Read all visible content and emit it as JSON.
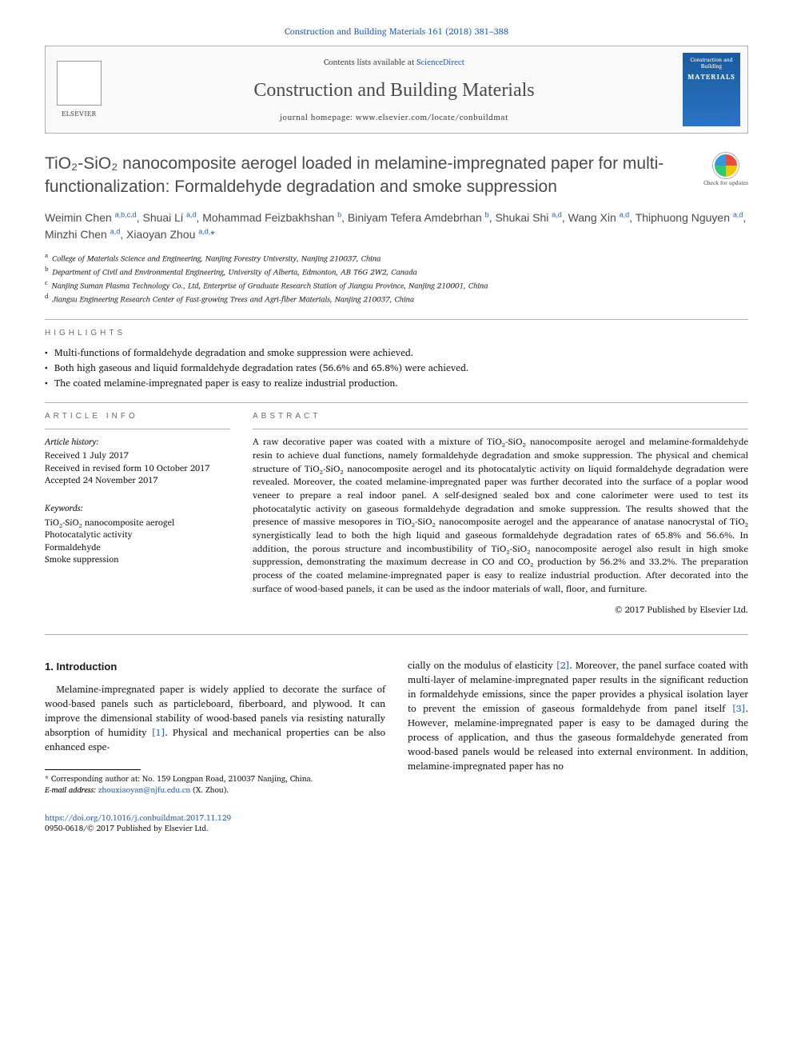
{
  "journal_ref": "Construction and Building Materials 161 (2018) 381–388",
  "header": {
    "contents_pre": "Contents lists available at ",
    "contents_link": "ScienceDirect",
    "journal_name": "Construction and Building Materials",
    "homepage_pre": "journal homepage: ",
    "homepage_url": "www.elsevier.com/locate/conbuildmat",
    "elsevier_label": "ELSEVIER",
    "cover_line1": "Construction and Building",
    "cover_line2": "MATERIALS"
  },
  "title": "TiO₂-SiO₂ nanocomposite aerogel loaded in melamine-impregnated paper for multi-functionalization: Formaldehyde degradation and smoke suppression",
  "check_updates": "Check for updates",
  "authors_html": "Weimin Chen <sup>a,b,c,d</sup>, Shuai Li <sup>a,d</sup>, Mohammad Feizbakhshan <sup>b</sup>, Biniyam Tefera Amdebrhan <sup>b</sup>, Shukai Shi <sup>a,d</sup>, Wang Xin <sup>a,d</sup>, Thiphuong Nguyen <sup>a,d</sup>, Minzhi Chen <sup>a,d</sup>, Xiaoyan Zhou <sup>a,d,</sup><span class='star'>*</span>",
  "affiliations": [
    {
      "sup": "a",
      "text": "College of Materials Science and Engineering, Nanjing Forestry University, Nanjing 210037, China"
    },
    {
      "sup": "b",
      "text": "Department of Civil and Environmental Engineering, University of Alberta, Edmonton, AB T6G 2W2, Canada"
    },
    {
      "sup": "c",
      "text": "Nanjing Suman Plasma Technology Co., Ltd, Enterprise of Graduate Research Station of Jiangsu Province, Nanjing 210001, China"
    },
    {
      "sup": "d",
      "text": "Jiangsu Engineering Research Center of Fast-growing Trees and Agri-fiber Materials, Nanjing 210037, China"
    }
  ],
  "highlights_label": "HIGHLIGHTS",
  "highlights": [
    "Multi-functions of formaldehyde degradation and smoke suppression were achieved.",
    "Both high gaseous and liquid formaldehyde degradation rates (56.6% and 65.8%) were achieved.",
    "The coated melamine-impregnated paper is easy to realize industrial production."
  ],
  "article_info_label": "ARTICLE INFO",
  "abstract_label": "ABSTRACT",
  "history_label": "Article history:",
  "history": [
    "Received 1 July 2017",
    "Received in revised form 10 October 2017",
    "Accepted 24 November 2017"
  ],
  "keywords_label": "Keywords:",
  "keywords": [
    "TiO₂-SiO₂ nanocomposite aerogel",
    "Photocatalytic activity",
    "Formaldehyde",
    "Smoke suppression"
  ],
  "abstract": "A raw decorative paper was coated with a mixture of TiO₂-SiO₂ nanocomposite aerogel and melamine-formaldehyde resin to achieve dual functions, namely formaldehyde degradation and smoke suppression. The physical and chemical structure of TiO₂-SiO₂ nanocomposite aerogel and its photocatalytic activity on liquid formaldehyde degradation were revealed. Moreover, the coated melamine-impregnated paper was further decorated into the surface of a poplar wood veneer to prepare a real indoor panel. A self-designed sealed box and cone calorimeter were used to test its photocatalytic activity on gaseous formaldehyde degradation and smoke suppression. The results showed that the presence of massive mesopores in TiO₂-SiO₂ nanocomposite aerogel and the appearance of anatase nanocrystal of TiO₂ synergistically lead to both the high liquid and gaseous formaldehyde degradation rates of 65.8% and 56.6%. In addition, the porous structure and incombustibility of TiO₂-SiO₂ nanocomposite aerogel also result in high smoke suppression, demonstrating the maximum decrease in CO and CO₂ production by 56.2% and 33.2%. The preparation process of the coated melamine-impregnated paper is easy to realize industrial production. After decorated into the surface of wood-based panels, it can be used as the indoor materials of wall, floor, and furniture.",
  "copyright": "© 2017 Published by Elsevier Ltd.",
  "intro_heading": "1. Introduction",
  "intro_col1": "Melamine-impregnated paper is widely applied to decorate the surface of wood-based panels such as particleboard, fiberboard, and plywood. It can improve the dimensional stability of wood-based panels via resisting naturally absorption of humidity [1]. Physical and mechanical properties can be also enhanced espe-",
  "intro_col2": "cially on the modulus of elasticity [2]. Moreover, the panel surface coated with multi-layer of melamine-impregnated paper results in the significant reduction in formaldehyde emissions, since the paper provides a physical isolation layer to prevent the emission of gaseous formaldehyde from panel itself [3]. However, melamine-impregnated paper is easy to be damaged during the process of application, and thus the gaseous formaldehyde generated from wood-based panels would be released into external environment. In addition, melamine-impregnated paper has no",
  "footnote_corr": "* Corresponding author at: No. 159 Longpan Road, 210037 Nanjing, China.",
  "footnote_email_label": "E-mail address:",
  "footnote_email": "zhouxiaoyan@njfu.edu.cn",
  "footnote_email_author": "(X. Zhou).",
  "doi_url": "https://doi.org/10.1016/j.conbuildmat.2017.11.129",
  "issn_line": "0950-0618/© 2017 Published by Elsevier Ltd."
}
